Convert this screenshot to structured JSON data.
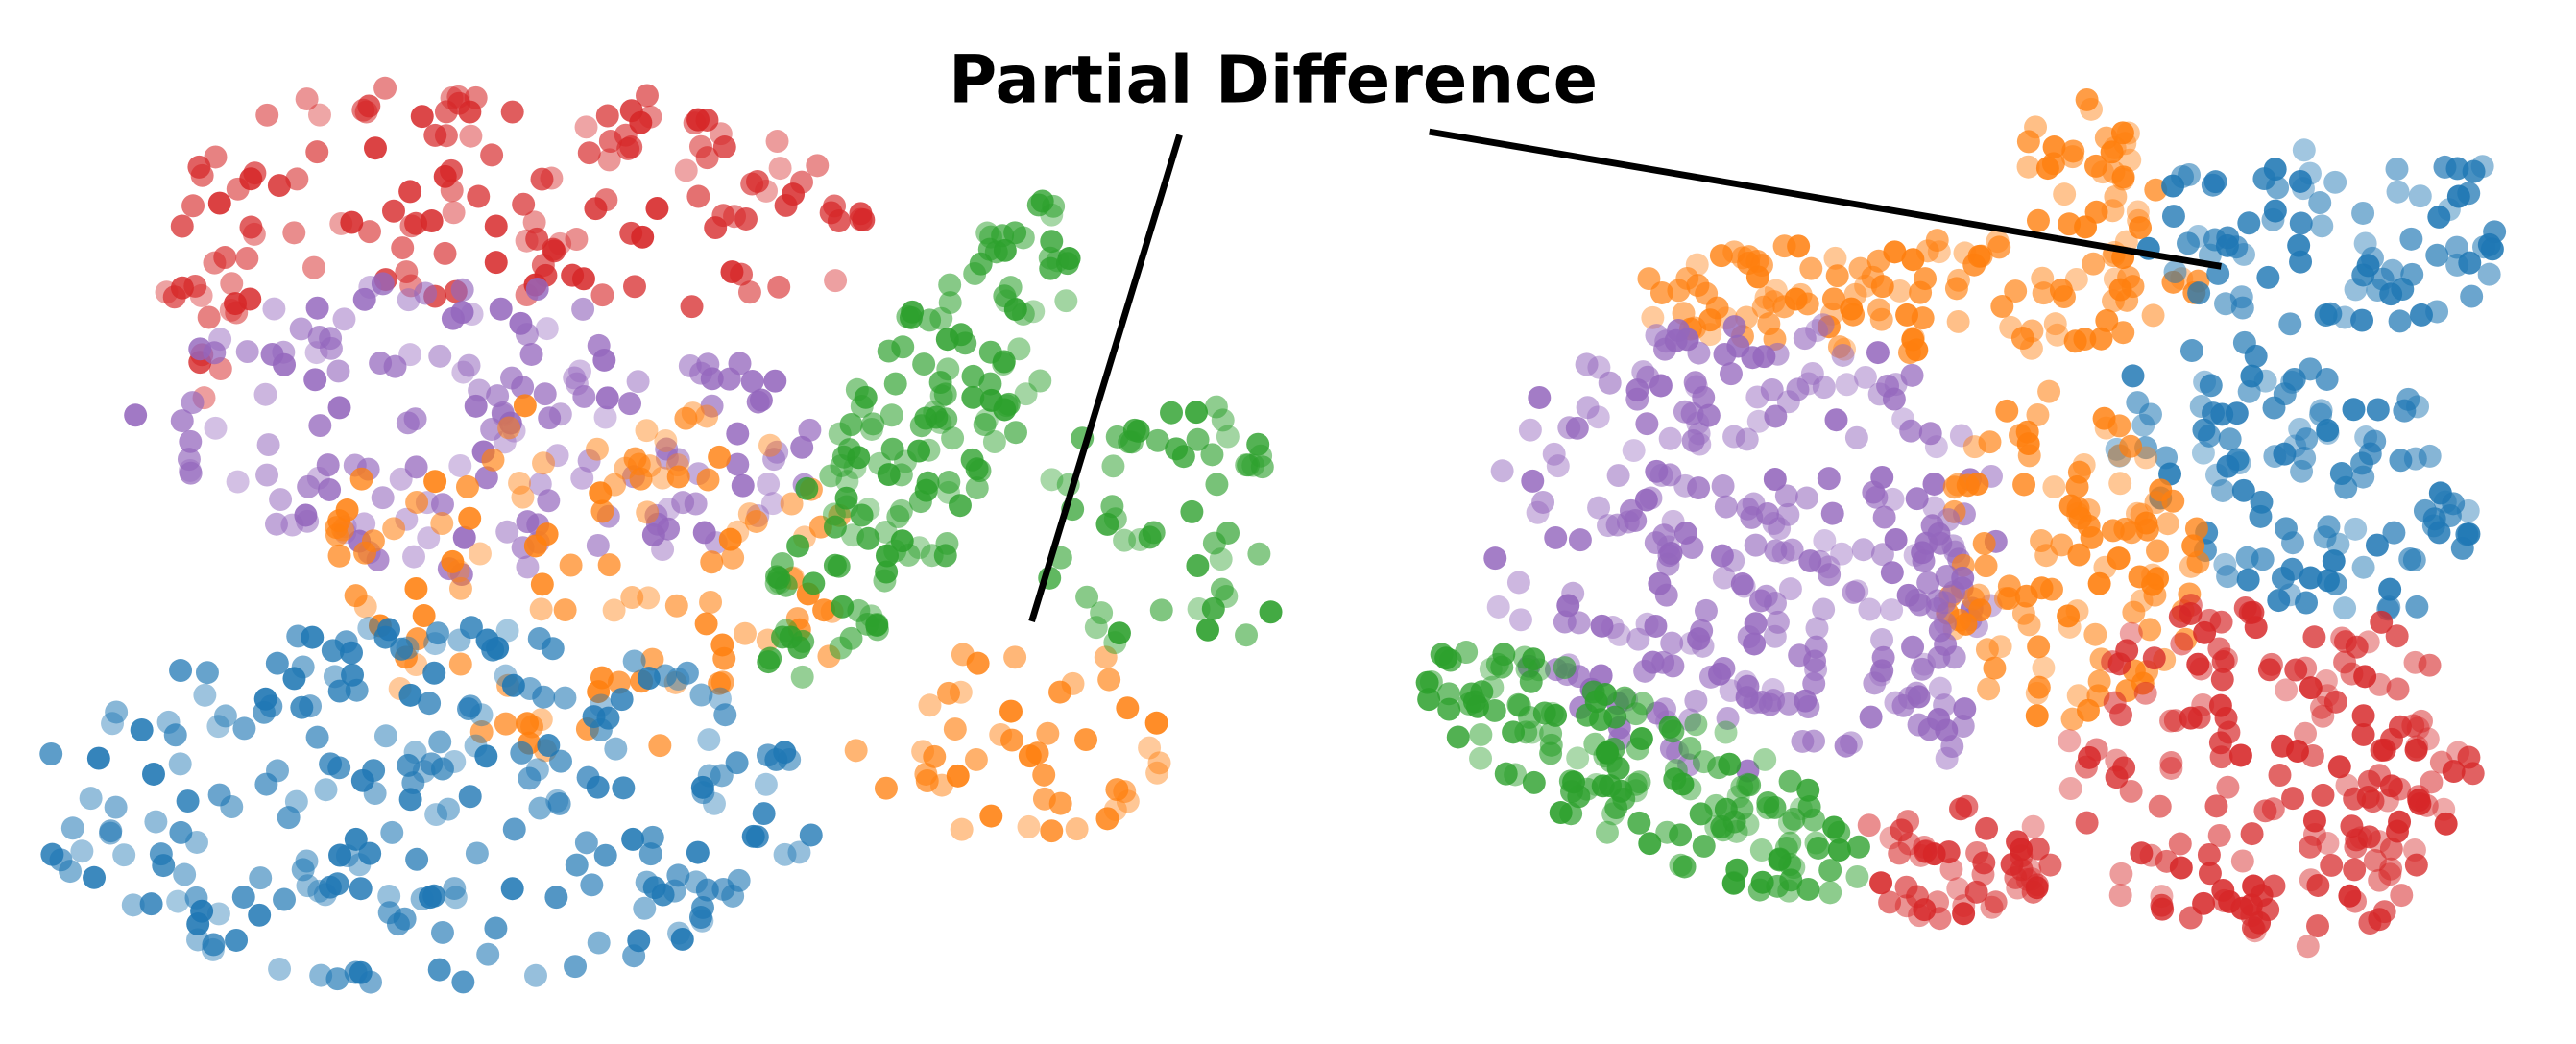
{
  "annotation": {
    "label": "Partial Difference"
  }
}
